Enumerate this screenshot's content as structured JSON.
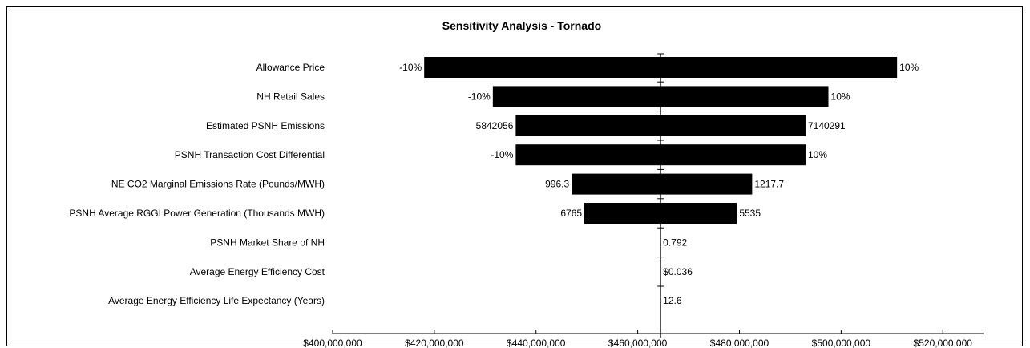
{
  "chart_data": {
    "type": "bar",
    "orientation": "horizontal-tornado",
    "title": "Sensitivity Analysis  - Tornado",
    "base_value": 464500000,
    "xlim": [
      400000000,
      528000000
    ],
    "x_ticks": [
      400000000,
      420000000,
      440000000,
      460000000,
      480000000,
      500000000,
      520000000
    ],
    "x_tick_labels": [
      "$400,000,000",
      "$420,000,000",
      "$440,000,000",
      "$460,000,000",
      "$480,000,000",
      "$500,000,000",
      "$520,000,000"
    ],
    "bar_color": "#000000",
    "bars": [
      {
        "category": "Allowance Price",
        "low": 418000000,
        "high": 511000000,
        "low_label": "-10%",
        "high_label": "10%"
      },
      {
        "category": "NH Retail Sales",
        "low": 431500000,
        "high": 497500000,
        "low_label": "-10%",
        "high_label": "10%"
      },
      {
        "category": "Estimated PSNH Emissions",
        "low": 436000000,
        "high": 493000000,
        "low_label": "5842056",
        "high_label": "7140291"
      },
      {
        "category": "PSNH Transaction Cost Differential",
        "low": 436000000,
        "high": 493000000,
        "low_label": "-10%",
        "high_label": "10%"
      },
      {
        "category": "NE CO2 Marginal Emissions Rate (Pounds/MWH)",
        "low": 447000000,
        "high": 482500000,
        "low_label": "996.3",
        "high_label": "1217.7"
      },
      {
        "category": "PSNH Average RGGI Power Generation (Thousands MWH)",
        "low": 449500000,
        "high": 479500000,
        "low_label": "6765",
        "high_label": "5535"
      },
      {
        "category": "PSNH Market Share of NH",
        "low": 464500000,
        "high": 464500000,
        "low_label": "",
        "high_label": "0.792"
      },
      {
        "category": "Average Energy Efficiency Cost",
        "low": 464500000,
        "high": 464500000,
        "low_label": "",
        "high_label": "$0.036"
      },
      {
        "category": "Average Energy Efficiency Life Expectancy (Years)",
        "low": 464500000,
        "high": 464500000,
        "low_label": "",
        "high_label": "12.6"
      }
    ]
  }
}
